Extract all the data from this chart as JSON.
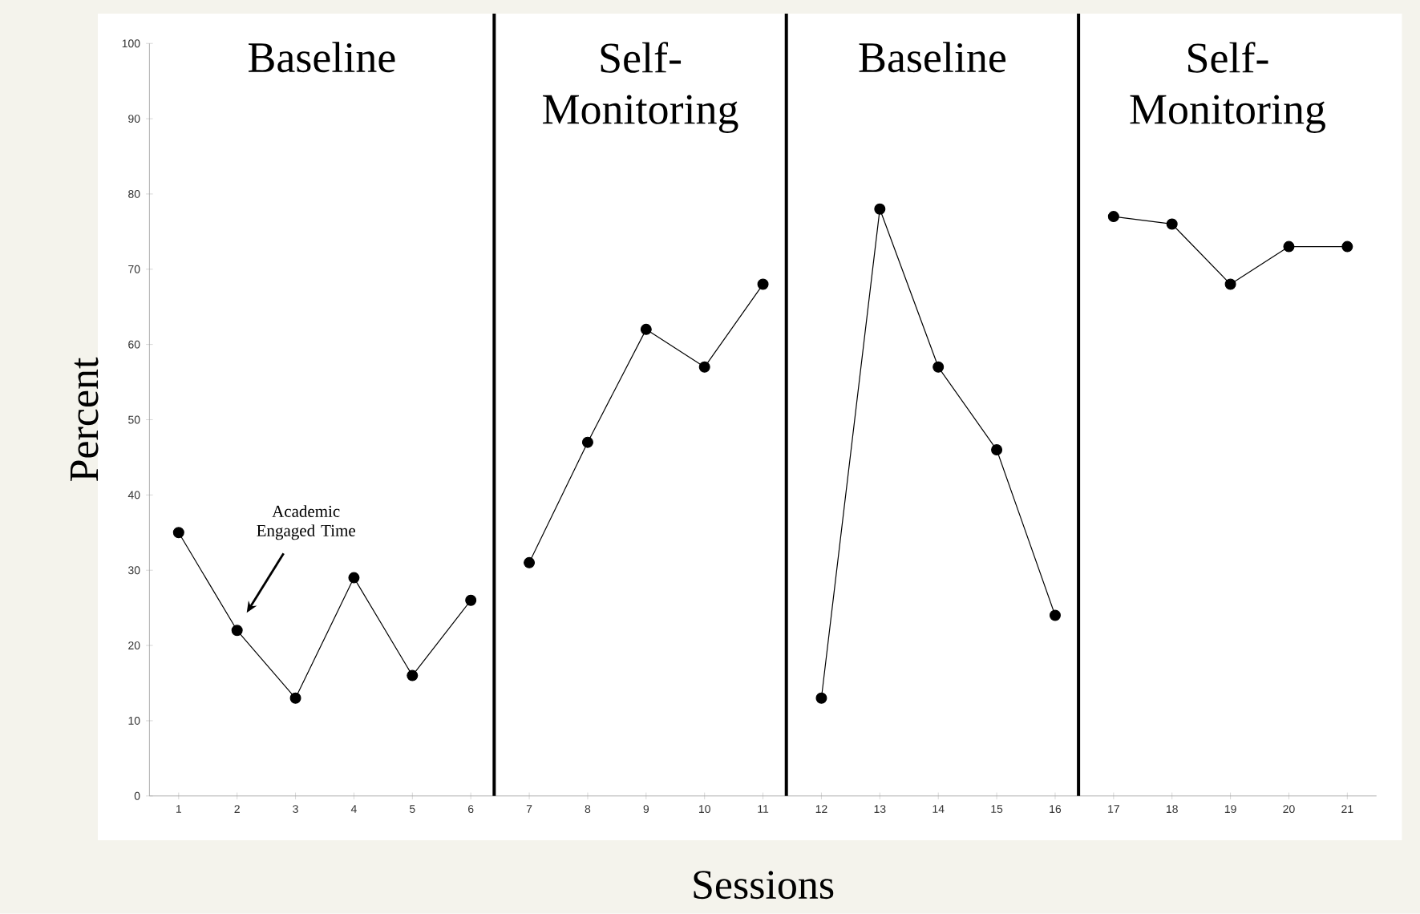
{
  "chart_data": {
    "type": "line",
    "xlabel": "Sessions",
    "ylabel": "Percent",
    "xlim": [
      0.5,
      21.5
    ],
    "xticks": [
      1,
      2,
      3,
      4,
      5,
      6,
      7,
      8,
      9,
      10,
      11,
      12,
      13,
      14,
      15,
      16,
      17,
      18,
      19,
      20,
      21
    ],
    "ylim": [
      0,
      100
    ],
    "yticks": [
      0,
      10,
      20,
      30,
      40,
      50,
      60,
      70,
      80,
      90,
      100
    ],
    "series": [
      {
        "color": "#000000",
        "x": [
          1,
          2,
          3,
          4,
          5,
          6
        ],
        "values": [
          35,
          22,
          13,
          29,
          16,
          26
        ]
      },
      {
        "color": "#000000",
        "x": [
          7,
          8,
          9,
          10,
          11
        ],
        "values": [
          31,
          47,
          62,
          57,
          68
        ]
      },
      {
        "color": "#000000",
        "x": [
          12,
          13,
          14,
          15,
          16
        ],
        "values": [
          13,
          78,
          57,
          46,
          24
        ]
      },
      {
        "color": "#000000",
        "x": [
          17,
          18,
          19,
          20,
          21
        ],
        "values": [
          77,
          76,
          68,
          73,
          73
        ]
      }
    ],
    "ref_lines": [
      {
        "axis": "x",
        "value": 6.4,
        "color": "#000000"
      },
      {
        "axis": "x",
        "value": 11.4,
        "color": "#000000"
      },
      {
        "axis": "x",
        "value": 16.4,
        "color": "#000000"
      }
    ],
    "annotations": [
      "Baseline",
      "Self-Monitoring",
      "Baseline",
      "Self-Monitoring",
      "Academic Engaged Time"
    ],
    "marker": "circle",
    "line_style": "solid"
  }
}
